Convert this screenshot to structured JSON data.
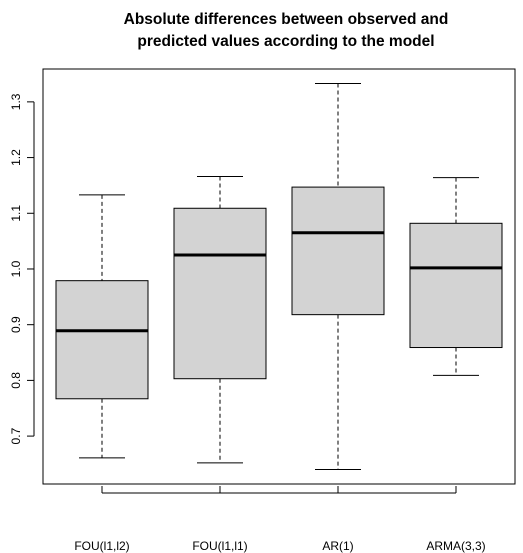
{
  "chart_data": {
    "type": "boxplot",
    "title_lines": [
      "Absolute differences between observed and",
      "predicted values according to the model"
    ],
    "xlabel": "",
    "ylabel": "",
    "categories": [
      "FOU(l1,l2)",
      "FOU(l1,l1)",
      "AR(1)",
      "ARMA(3,3)"
    ],
    "boxes": [
      {
        "name": "FOU(l1,l2)",
        "whisker_low": 0.661,
        "q1": 0.767,
        "median": 0.889,
        "q3": 0.979,
        "whisker_high": 1.133
      },
      {
        "name": "FOU(l1,l1)",
        "whisker_low": 0.652,
        "q1": 0.803,
        "median": 1.025,
        "q3": 1.109,
        "whisker_high": 1.166
      },
      {
        "name": "AR(1)",
        "whisker_low": 0.64,
        "q1": 0.918,
        "median": 1.065,
        "q3": 1.147,
        "whisker_high": 1.333
      },
      {
        "name": "ARMA(3,3)",
        "whisker_low": 0.809,
        "q1": 0.859,
        "median": 1.002,
        "q3": 1.082,
        "whisker_high": 1.164
      }
    ],
    "y_ticks": [
      0.7,
      0.8,
      0.9,
      1.0,
      1.1,
      1.2,
      1.3
    ],
    "y_tick_labels": [
      "0.7",
      "0.8",
      "0.9",
      "1.0",
      "1.1",
      "1.2",
      "1.3"
    ],
    "ylim": [
      0.614,
      1.359
    ],
    "box_fill": "#d3d3d3",
    "line_color": "#000000",
    "grid": false,
    "legend": "none"
  }
}
